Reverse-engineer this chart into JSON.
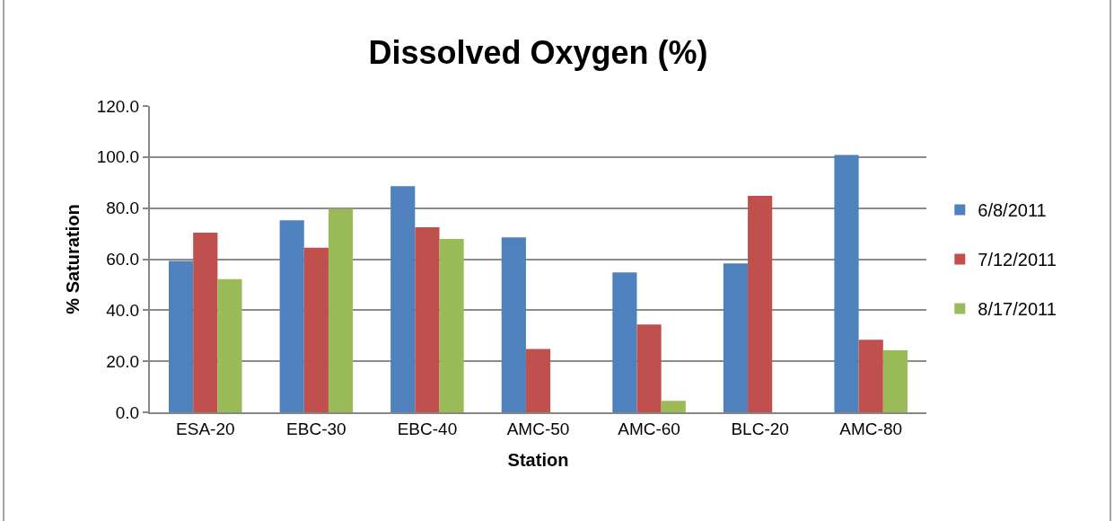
{
  "chart_data": {
    "type": "bar",
    "title": "Dissolved Oxygen (%)",
    "xlabel": "Station",
    "ylabel": "% Saturation",
    "categories": [
      "ESA-20",
      "EBC-30",
      "EBC-40",
      "AMC-50",
      "AMC-60",
      "BLC-20",
      "AMC-80"
    ],
    "series": [
      {
        "name": "6/8/2011",
        "color": "#4f81bd",
        "values": [
          59.3,
          75.2,
          88.6,
          68.5,
          54.8,
          58.3,
          100.8
        ]
      },
      {
        "name": "7/12/2011",
        "color": "#c0504d",
        "values": [
          70.4,
          64.5,
          72.5,
          24.8,
          34.4,
          84.8,
          28.4
        ]
      },
      {
        "name": "8/17/2011",
        "color": "#9bbb59",
        "values": [
          52.2,
          79.7,
          67.9,
          null,
          4.5,
          null,
          24.3
        ]
      }
    ],
    "ylim": [
      0,
      120
    ],
    "yticks": [
      {
        "value": 0,
        "label": "0.0"
      },
      {
        "value": 20,
        "label": "20.0"
      },
      {
        "value": 40,
        "label": "40.0"
      },
      {
        "value": 60,
        "label": "60.0"
      },
      {
        "value": 80,
        "label": "80.0"
      },
      {
        "value": 100,
        "label": "100.0"
      },
      {
        "value": 120,
        "label": "120.0"
      }
    ],
    "grid": "y",
    "legend": "right"
  }
}
